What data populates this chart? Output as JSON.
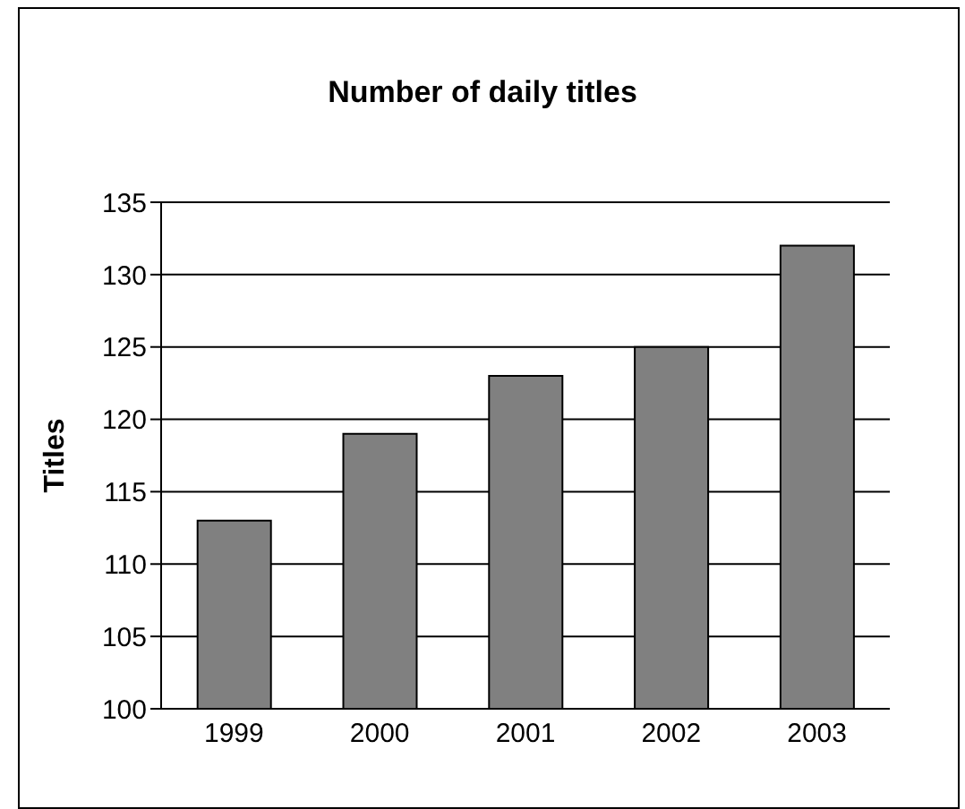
{
  "chart_data": {
    "type": "bar",
    "title": "Number of daily titles",
    "ylabel": "Titles",
    "categories": [
      "1999",
      "2000",
      "2001",
      "2002",
      "2003"
    ],
    "values": [
      113,
      119,
      123,
      125,
      132
    ],
    "color": "#808080",
    "ylim": [
      100,
      135
    ],
    "yticks": [
      100,
      105,
      110,
      115,
      120,
      125,
      130,
      135
    ],
    "grid": "y"
  }
}
